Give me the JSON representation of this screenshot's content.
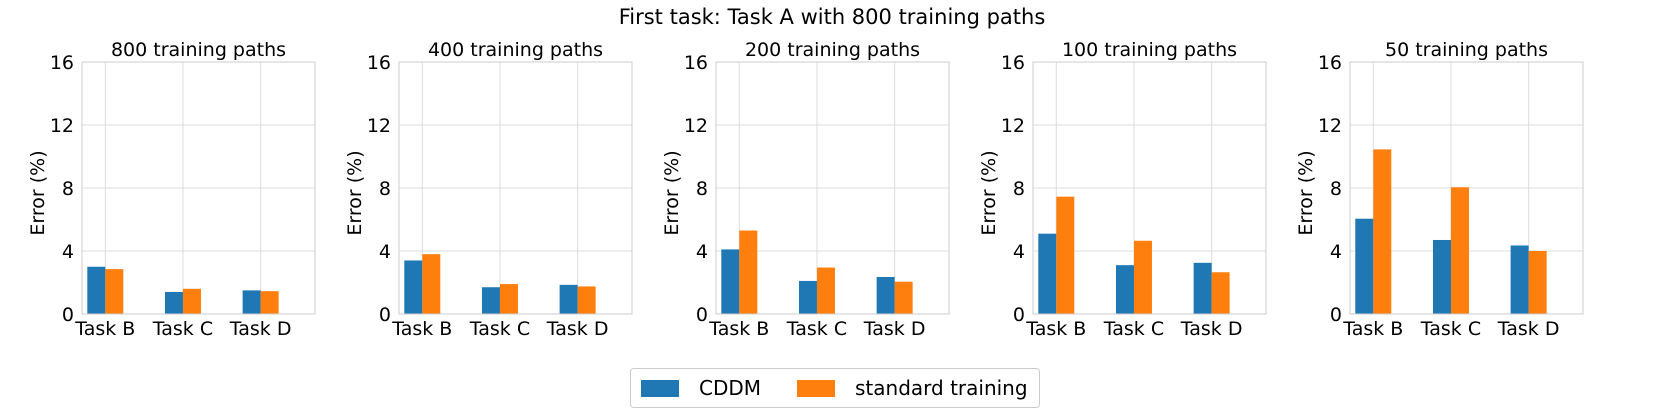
{
  "figure_title": "First task: Task A with 800 training paths",
  "legend": {
    "items": [
      {
        "label": "CDDM",
        "color": "#1f77b4"
      },
      {
        "label": "standard training",
        "color": "#ff7f0e"
      }
    ]
  },
  "chart_data": [
    {
      "type": "bar",
      "title": "800 training paths",
      "categories": [
        "Task B",
        "Task C",
        "Task D"
      ],
      "series": [
        {
          "name": "CDDM",
          "values": [
            3.0,
            1.4,
            1.5
          ]
        },
        {
          "name": "standard training",
          "values": [
            2.85,
            1.6,
            1.45
          ]
        }
      ],
      "ylabel": "Error (%)",
      "ylim": [
        0,
        16
      ],
      "yticks": [
        "0",
        "4",
        "8",
        "12",
        "16"
      ]
    },
    {
      "type": "bar",
      "title": "400 training paths",
      "categories": [
        "Task B",
        "Task C",
        "Task D"
      ],
      "series": [
        {
          "name": "CDDM",
          "values": [
            3.4,
            1.7,
            1.85
          ]
        },
        {
          "name": "standard training",
          "values": [
            3.8,
            1.9,
            1.75
          ]
        }
      ],
      "ylabel": "Error (%)",
      "ylim": [
        0,
        16
      ],
      "yticks": [
        "0",
        "4",
        "8",
        "12",
        "16"
      ]
    },
    {
      "type": "bar",
      "title": "200 training paths",
      "categories": [
        "Task B",
        "Task C",
        "Task D"
      ],
      "series": [
        {
          "name": "CDDM",
          "values": [
            4.1,
            2.1,
            2.35
          ]
        },
        {
          "name": "standard training",
          "values": [
            5.3,
            2.95,
            2.05
          ]
        }
      ],
      "ylabel": "Error (%)",
      "ylim": [
        0,
        16
      ],
      "yticks": [
        "0",
        "4",
        "8",
        "12",
        "16"
      ]
    },
    {
      "type": "bar",
      "title": "100 training paths",
      "categories": [
        "Task B",
        "Task C",
        "Task D"
      ],
      "series": [
        {
          "name": "CDDM",
          "values": [
            5.1,
            3.1,
            3.25
          ]
        },
        {
          "name": "standard training",
          "values": [
            7.45,
            4.65,
            2.65
          ]
        }
      ],
      "ylabel": "Error (%)",
      "ylim": [
        0,
        16
      ],
      "yticks": [
        "0",
        "4",
        "8",
        "12",
        "16"
      ]
    },
    {
      "type": "bar",
      "title": "50 training paths",
      "categories": [
        "Task B",
        "Task C",
        "Task D"
      ],
      "series": [
        {
          "name": "CDDM",
          "values": [
            6.05,
            4.7,
            4.35
          ]
        },
        {
          "name": "standard training",
          "values": [
            10.45,
            8.05,
            4.0
          ]
        }
      ],
      "ylabel": "Error (%)",
      "ylim": [
        0,
        16
      ],
      "yticks": [
        "0",
        "4",
        "8",
        "12",
        "16"
      ]
    }
  ]
}
